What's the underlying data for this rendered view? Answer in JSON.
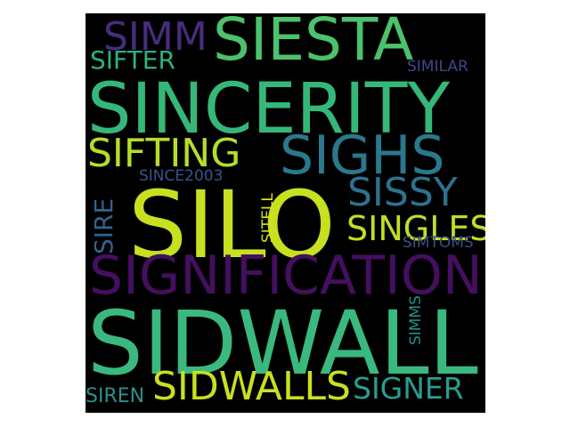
{
  "words": {
    "sidwall": {
      "text": "SIDWALL",
      "color": "#3ab97f"
    },
    "silo": {
      "text": "SILO",
      "color": "#c7e020"
    },
    "sincerity": {
      "text": "SINCERITY",
      "color": "#35b779"
    },
    "siesta": {
      "text": "SIESTA",
      "color": "#4cc26c"
    },
    "signification": {
      "text": "SIGNIFICATION",
      "color": "#440f5e"
    },
    "sighs": {
      "text": "SIGHS",
      "color": "#2a788e"
    },
    "sifting": {
      "text": "SIFTING",
      "color": "#b5de2b"
    },
    "sissy": {
      "text": "SISSY",
      "color": "#2c728e"
    },
    "sidwalls": {
      "text": "SIDWALLS",
      "color": "#c8e020"
    },
    "signer": {
      "text": "SIGNER",
      "color": "#2a9d8f"
    },
    "singles": {
      "text": "SINGLES",
      "color": "#bddf26"
    },
    "simm": {
      "text": "SIMM",
      "color": "#472d7b"
    },
    "sifter": {
      "text": "SIFTER",
      "color": "#2db27d"
    },
    "sire": {
      "text": "SIRE",
      "color": "#33638d"
    },
    "siren": {
      "text": "SIREN",
      "color": "#2f8e8d"
    },
    "since2003": {
      "text": "SINCE2003",
      "color": "#3b528b"
    },
    "sitell": {
      "text": "SITELL",
      "color": "#d8e219"
    },
    "similar": {
      "text": "SIMILAR",
      "color": "#404688"
    },
    "simtoms": {
      "text": "SIMTOMS",
      "color": "#3e4c8a"
    },
    "simms": {
      "text": "SIMMS",
      "color": "#21908d"
    }
  }
}
